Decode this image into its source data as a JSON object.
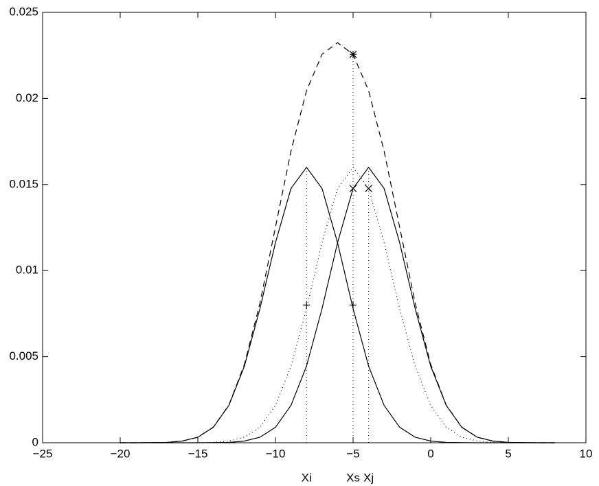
{
  "chart_data": {
    "type": "line",
    "x": [
      -20,
      -19,
      -18,
      -17,
      -16,
      -15,
      -14,
      -13,
      -12,
      -11,
      -10,
      -9,
      -8,
      -7,
      -6,
      -5,
      -4,
      -3,
      -2,
      -1,
      0,
      1,
      2,
      3,
      4,
      5,
      6,
      7,
      8
    ],
    "series": [
      {
        "color": "#000000",
        "style": "solid",
        "values": [
          0,
          0,
          1e-05,
          2e-05,
          0.0001,
          0.00032,
          0.0009,
          0.00217,
          0.00445,
          0.00779,
          0.01162,
          0.01477,
          0.016,
          0.01477,
          0.01162,
          0.00779,
          0.00445,
          0.00217,
          0.0009,
          0.00032,
          0.0001,
          2e-05,
          1e-05,
          0,
          0,
          0,
          0,
          0,
          0
        ]
      },
      {
        "color": "#000000",
        "style": "solid",
        "values": [
          0,
          0,
          0,
          0,
          0,
          0,
          1e-05,
          2e-05,
          0.0001,
          0.00032,
          0.0009,
          0.00217,
          0.00445,
          0.00779,
          0.01162,
          0.01477,
          0.016,
          0.01477,
          0.01162,
          0.00779,
          0.00445,
          0.00217,
          0.0009,
          0.00032,
          0.0001,
          2e-05,
          1e-05,
          0,
          0
        ]
      },
      {
        "color": "#000000",
        "style": "dotted",
        "values": [
          0,
          0,
          0,
          0,
          0,
          1e-05,
          2e-05,
          0.0001,
          0.00032,
          0.0009,
          0.00217,
          0.00445,
          0.00779,
          0.01162,
          0.01477,
          0.016,
          0.01477,
          0.01162,
          0.00779,
          0.00445,
          0.00217,
          0.0009,
          0.00032,
          0.0001,
          2e-05,
          1e-05,
          0,
          0,
          0
        ]
      },
      {
        "color": "#000000",
        "style": "dashed",
        "values": [
          0,
          0,
          1e-05,
          2e-05,
          0.0001,
          0.00032,
          0.00091,
          0.00219,
          0.00455,
          0.00811,
          0.01252,
          0.01694,
          0.02045,
          0.02256,
          0.02324,
          0.02256,
          0.02045,
          0.01694,
          0.01252,
          0.00811,
          0.00455,
          0.00219,
          0.00091,
          0.00032,
          0.0001,
          2e-05,
          1e-05,
          0,
          0
        ]
      }
    ],
    "markers": [
      {
        "symbol": "star",
        "x": -5,
        "y": 0.02256
      },
      {
        "symbol": "cross",
        "x": -5,
        "y": 0.01477
      },
      {
        "symbol": "cross",
        "x": -4,
        "y": 0.01477
      },
      {
        "symbol": "plus",
        "x": -8,
        "y": 0.008
      },
      {
        "symbol": "plus",
        "x": -5,
        "y": 0.008
      }
    ],
    "vlines": [
      {
        "x": -8,
        "y": 0.016,
        "label": "Xi"
      },
      {
        "x": -5,
        "y": 0.02256,
        "label": "Xs"
      },
      {
        "x": -4,
        "y": 0.016,
        "label": "Xj"
      }
    ],
    "xlim": [
      -25,
      10
    ],
    "xticks": [
      {
        "value": -25,
        "label": "−25"
      },
      {
        "value": -20,
        "label": "−20"
      },
      {
        "value": -15,
        "label": "−15"
      },
      {
        "value": -10,
        "label": "−10"
      },
      {
        "value": -5,
        "label": "−5"
      },
      0,
      5,
      10
    ],
    "ylim": [
      0,
      0.025
    ],
    "yticks": [
      0,
      0.005,
      0.01,
      0.015,
      0.02,
      0.025
    ],
    "grid": false
  }
}
